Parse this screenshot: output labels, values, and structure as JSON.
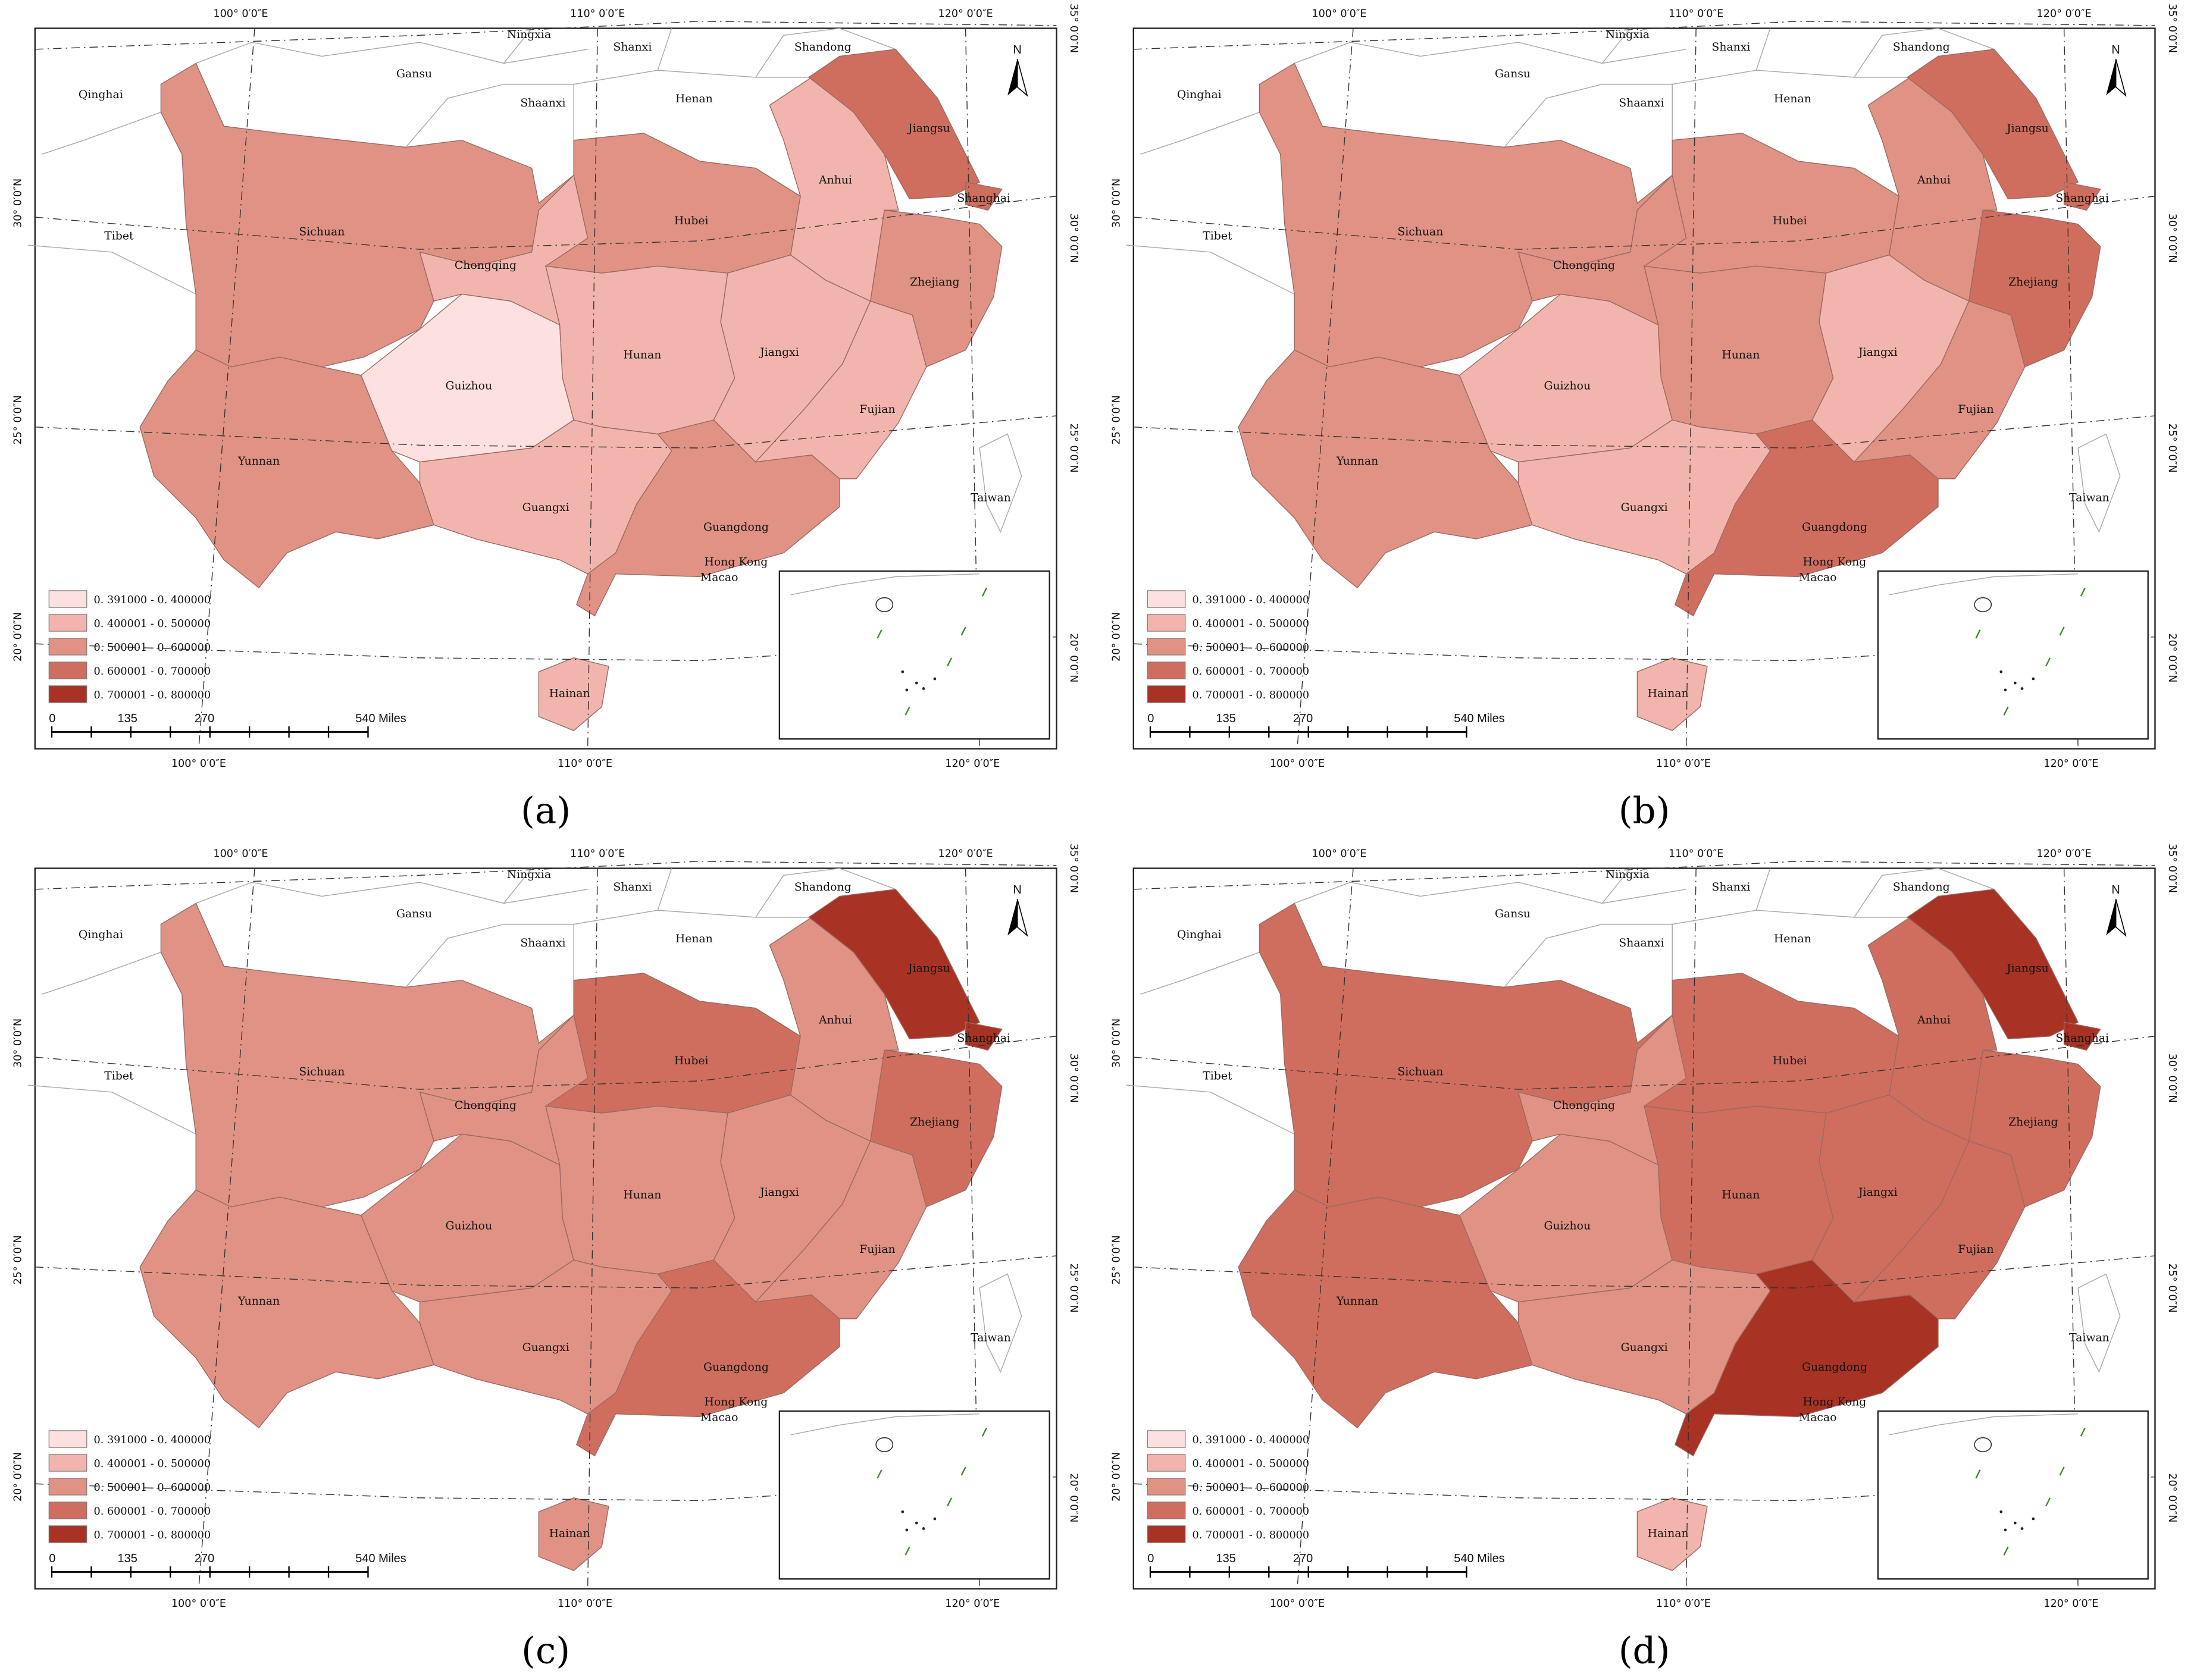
{
  "legend": {
    "classes": [
      {
        "range": "0. 391000 - 0. 400000",
        "color": "#FDE0E0"
      },
      {
        "range": "0. 400001 - 0. 500000",
        "color": "#F2B5AD"
      },
      {
        "range": "0. 500001 - 0. 600000",
        "color": "#E09284"
      },
      {
        "range": "0. 600001 - 0. 700000",
        "color": "#CF6E5F"
      },
      {
        "range": "0. 700001 - 0. 800000",
        "color": "#A83224"
      }
    ]
  },
  "scale_bar": {
    "labels": [
      "0",
      "135",
      "270",
      "540 Miles"
    ]
  },
  "north_arrow": {
    "label": "N",
    "icon": "north-arrow-icon"
  },
  "graticule": {
    "top": [
      "100° 0′0″E",
      "110° 0′0″E",
      "120° 0′0″E"
    ],
    "bottom": [
      "100° 0′0″E",
      "110° 0′0″E",
      "120° 0′0″E"
    ],
    "left": [
      "30° 0′0″N",
      "25° 0′0″N",
      "20° 0′0″N"
    ],
    "right": [
      "35° 0′0″N",
      "30° 0′0″N",
      "25° 0′0″N",
      "20° 0′0″N"
    ]
  },
  "neighbors": [
    "Qinghai",
    "Tibet",
    "Gansu",
    "Ningxia",
    "Shaanxi",
    "Shanxi",
    "Henan",
    "Shandong",
    "Taiwan",
    "Hong Kong",
    "Macao"
  ],
  "provinces": [
    "Sichuan",
    "Yunnan",
    "Guizhou",
    "Chongqing",
    "Hubei",
    "Hunan",
    "Guangxi",
    "Guangdong",
    "Hainan",
    "Jiangxi",
    "Fujian",
    "Zhejiang",
    "Anhui",
    "Jiangsu",
    "Shanghai"
  ],
  "panels": [
    {
      "caption": "(a)",
      "classes": {
        "Sichuan": 3,
        "Yunnan": 3,
        "Guizhou": 1,
        "Chongqing": 2,
        "Hubei": 3,
        "Hunan": 2,
        "Guangxi": 2,
        "Guangdong": 3,
        "Hainan": 2,
        "Jiangxi": 2,
        "Fujian": 2,
        "Zhejiang": 3,
        "Anhui": 2,
        "Jiangsu": 4,
        "Shanghai": 4
      }
    },
    {
      "caption": "(b)",
      "classes": {
        "Sichuan": 3,
        "Yunnan": 3,
        "Guizhou": 2,
        "Chongqing": 3,
        "Hubei": 3,
        "Hunan": 3,
        "Guangxi": 2,
        "Guangdong": 4,
        "Hainan": 2,
        "Jiangxi": 2,
        "Fujian": 3,
        "Zhejiang": 4,
        "Anhui": 3,
        "Jiangsu": 4,
        "Shanghai": 4
      }
    },
    {
      "caption": "(c)",
      "classes": {
        "Sichuan": 3,
        "Yunnan": 3,
        "Guizhou": 3,
        "Chongqing": 3,
        "Hubei": 4,
        "Hunan": 3,
        "Guangxi": 3,
        "Guangdong": 4,
        "Hainan": 3,
        "Jiangxi": 3,
        "Fujian": 3,
        "Zhejiang": 4,
        "Anhui": 3,
        "Jiangsu": 5,
        "Shanghai": 5
      }
    },
    {
      "caption": "(d)",
      "classes": {
        "Sichuan": 4,
        "Yunnan": 4,
        "Guizhou": 3,
        "Chongqing": 3,
        "Hubei": 4,
        "Hunan": 4,
        "Guangxi": 3,
        "Guangdong": 5,
        "Hainan": 2,
        "Jiangxi": 4,
        "Fujian": 4,
        "Zhejiang": 4,
        "Anhui": 4,
        "Jiangsu": 5,
        "Shanghai": 5
      }
    }
  ]
}
